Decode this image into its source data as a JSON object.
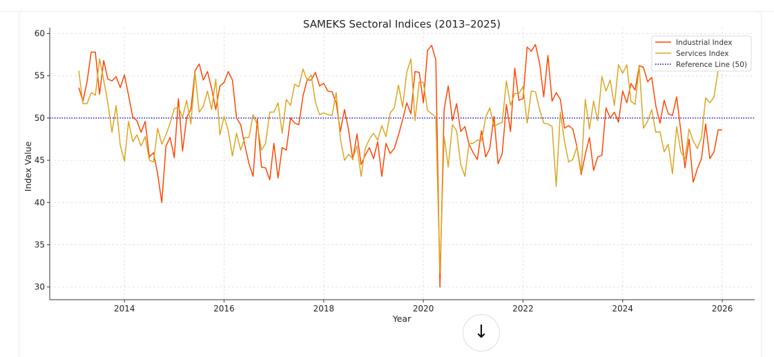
{
  "chart_data": {
    "type": "line",
    "title": "SAMEKS Sectoral Indices (2013–2025)",
    "xlabel": "Year",
    "ylabel": "Index Value",
    "xlim": [
      2012.5,
      2026.65
    ],
    "ylim": [
      28.5,
      60.7
    ],
    "x_ticks": [
      "2014",
      "2016",
      "2018",
      "2020",
      "2022",
      "2024",
      "2026"
    ],
    "y_ticks": [
      30,
      35,
      40,
      45,
      50,
      55,
      60
    ],
    "grid": true,
    "legend": "top-right",
    "x": [
      "2013-02",
      "2013-03",
      "2013-04",
      "2013-05",
      "2013-06",
      "2013-07",
      "2013-08",
      "2013-09",
      "2013-10",
      "2013-11",
      "2013-12",
      "2014-01",
      "2014-02",
      "2014-03",
      "2014-04",
      "2014-05",
      "2014-06",
      "2014-07",
      "2014-08",
      "2014-09",
      "2014-10",
      "2014-11",
      "2014-12",
      "2015-01",
      "2015-02",
      "2015-03",
      "2015-04",
      "2015-05",
      "2015-06",
      "2015-07",
      "2015-08",
      "2015-09",
      "2015-10",
      "2015-11",
      "2015-12",
      "2016-01",
      "2016-02",
      "2016-03",
      "2016-04",
      "2016-05",
      "2016-06",
      "2016-07",
      "2016-08",
      "2016-09",
      "2016-10",
      "2016-11",
      "2016-12",
      "2017-01",
      "2017-02",
      "2017-03",
      "2017-04",
      "2017-05",
      "2017-06",
      "2017-07",
      "2017-08",
      "2017-09",
      "2017-10",
      "2017-11",
      "2017-12",
      "2018-01",
      "2018-02",
      "2018-03",
      "2018-04",
      "2018-05",
      "2018-06",
      "2018-07",
      "2018-08",
      "2018-09",
      "2018-10",
      "2018-11",
      "2018-12",
      "2019-01",
      "2019-02",
      "2019-03",
      "2019-04",
      "2019-05",
      "2019-06",
      "2019-07",
      "2019-08",
      "2019-09",
      "2019-10",
      "2019-11",
      "2019-12",
      "2020-01",
      "2020-02",
      "2020-03",
      "2020-04",
      "2020-05",
      "2020-06",
      "2020-07",
      "2020-08",
      "2020-09",
      "2020-10",
      "2020-11",
      "2020-12",
      "2021-01",
      "2021-02",
      "2021-03",
      "2021-04",
      "2021-05",
      "2021-06",
      "2021-07",
      "2021-08",
      "2021-09",
      "2021-10",
      "2021-11",
      "2021-12",
      "2022-01",
      "2022-02",
      "2022-03",
      "2022-04",
      "2022-05",
      "2022-06",
      "2022-07",
      "2022-08",
      "2022-09",
      "2022-10",
      "2022-11",
      "2022-12",
      "2023-01",
      "2023-02",
      "2023-03",
      "2023-04",
      "2023-05",
      "2023-06",
      "2023-07",
      "2023-08",
      "2023-09",
      "2023-10",
      "2023-11",
      "2023-12",
      "2024-01",
      "2024-02",
      "2024-03",
      "2024-04",
      "2024-05",
      "2024-06",
      "2024-07",
      "2024-08",
      "2024-09",
      "2024-10",
      "2024-11",
      "2024-12",
      "2025-01",
      "2025-02",
      "2025-03",
      "2025-04",
      "2025-05",
      "2025-06",
      "2025-07",
      "2025-08",
      "2025-09",
      "2025-10",
      "2025-11",
      "2025-12",
      "2026-01"
    ],
    "series": [
      {
        "name": "Industrial Index",
        "color": "#FF4500",
        "values": [
          53.6,
          52.0,
          54.3,
          57.8,
          57.8,
          52.8,
          56.8,
          54.6,
          54.4,
          54.9,
          53.6,
          55.1,
          52.7,
          50.1,
          49.7,
          48.3,
          49.6,
          45.4,
          45.9,
          43.4,
          40.0,
          46.7,
          47.7,
          45.3,
          52.3,
          46.1,
          50.1,
          51.0,
          55.6,
          56.4,
          54.5,
          55.5,
          53.5,
          51.0,
          53.8,
          54.2,
          55.5,
          54.5,
          50.0,
          49.2,
          46.8,
          44.6,
          43.1,
          49.9,
          44.2,
          44.1,
          42.7,
          47.0,
          42.9,
          46.5,
          46.2,
          50.0,
          49.4,
          49.2,
          52.6,
          54.5,
          54.5,
          55.4,
          53.8,
          54.1,
          53.2,
          53.1,
          51.8,
          48.4,
          51.0,
          48.6,
          45.1,
          48.1,
          44.5,
          45.6,
          46.5,
          45.2,
          47.2,
          43.1,
          47.0,
          45.8,
          46.4,
          48.0,
          49.8,
          51.8,
          50.5,
          55.5,
          55.4,
          51.8,
          58.0,
          58.6,
          56.9,
          30.0,
          51.0,
          53.8,
          49.7,
          51.7,
          48.4,
          49.0,
          46.9,
          45.9,
          45.1,
          48.5,
          45.4,
          46.4,
          50.2,
          44.6,
          45.8,
          51.6,
          48.4,
          55.9,
          52.1,
          52.3,
          58.4,
          57.9,
          58.7,
          56.5,
          52.5,
          57.4,
          52.0,
          53.0,
          52.2,
          48.8,
          49.1,
          48.7,
          46.6,
          43.3,
          45.7,
          47.7,
          43.8,
          45.4,
          45.6,
          51.2,
          50.0,
          50.7,
          49.5,
          53.2,
          51.8,
          54.1,
          53.3,
          56.2,
          56.0,
          54.3,
          54.8,
          51.4,
          49.4,
          52.1,
          50.5,
          50.3,
          52.5,
          48.5,
          44.1,
          47.5,
          42.4,
          44.0,
          45.2,
          49.3,
          45.2,
          46.0,
          48.6,
          48.6
        ]
      },
      {
        "name": "Services Index",
        "color": "#DAA520",
        "values": [
          55.6,
          51.7,
          51.7,
          53.0,
          52.7,
          57.0,
          54.5,
          51.8,
          48.3,
          51.5,
          46.8,
          44.9,
          49.6,
          47.2,
          48.0,
          46.7,
          47.8,
          45.0,
          44.8,
          48.8,
          46.9,
          48.0,
          49.4,
          51.1,
          51.3,
          50.1,
          52.1,
          49.3,
          55.3,
          50.7,
          51.4,
          53.2,
          51.0,
          54.6,
          48.0,
          50.2,
          48.5,
          45.5,
          48.2,
          46.2,
          47.7,
          47.7,
          50.4,
          49.2,
          46.2,
          47.0,
          50.7,
          50.7,
          51.8,
          48.2,
          52.2,
          51.5,
          54.0,
          53.7,
          55.8,
          54.5,
          55.1,
          51.9,
          50.4,
          50.6,
          50.4,
          50.3,
          53.0,
          47.6,
          45.0,
          45.7,
          45.2,
          46.7,
          43.1,
          46.4,
          47.5,
          48.2,
          47.4,
          49.1,
          47.8,
          50.6,
          51.2,
          53.9,
          51.3,
          55.4,
          57.0,
          49.7,
          54.3,
          54.2,
          50.9,
          50.5,
          50.1,
          31.6,
          47.8,
          44.2,
          49.2,
          48.5,
          44.5,
          43.1,
          47.0,
          47.0,
          47.4,
          47.3,
          50.1,
          51.2,
          49.0,
          49.3,
          49.5,
          54.4,
          51.5,
          52.9,
          52.9,
          53.7,
          49.4,
          53.2,
          53.1,
          51.0,
          49.4,
          49.3,
          49.0,
          41.9,
          50.7,
          47.2,
          44.8,
          45.1,
          46.6,
          43.6,
          52.2,
          48.7,
          52.0,
          49.7,
          54.9,
          53.2,
          54.5,
          51.5,
          56.3,
          55.3,
          56.3,
          52.0,
          51.6,
          56.1,
          48.8,
          49.6,
          51.0,
          48.3,
          48.4,
          46.0,
          46.9,
          43.4,
          49.0,
          46.0,
          45.2,
          48.7,
          47.3,
          46.4,
          47.7,
          52.4,
          51.8,
          52.5,
          55.7,
          55.7
        ]
      }
    ],
    "reference_line": {
      "name": "Reference Line (50)",
      "value": 50,
      "color": "#0000CC",
      "style": "dotted"
    }
  },
  "ui": {
    "scroll_down_icon": "arrow-down-icon",
    "scroll_down_glyph": "↓"
  }
}
